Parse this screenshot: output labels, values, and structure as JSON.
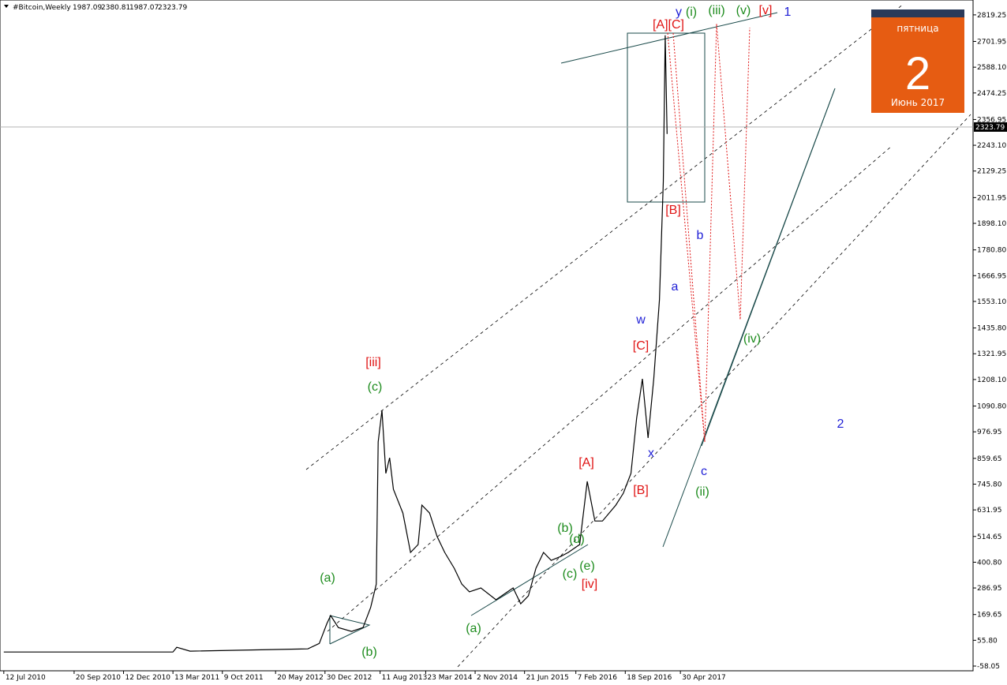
{
  "chart_data": {
    "type": "line",
    "title": "#Bitcoin,Weekly",
    "last_bar": {
      "open": 1987.09,
      "high": 2380.81,
      "low": 1987.07,
      "close": 2323.79
    },
    "x": [
      2,
      91,
      93,
      100,
      162,
      168,
      172,
      174,
      178,
      185,
      191,
      195,
      198,
      199,
      201,
      203,
      205,
      207,
      212,
      216,
      220,
      222,
      226,
      230,
      234,
      239,
      243,
      247,
      253,
      261,
      270,
      274,
      278,
      282,
      286,
      290,
      295,
      299,
      305,
      309,
      313,
      317,
      324,
      328,
      332,
      335,
      338,
      341,
      344,
      347,
      349,
      350,
      351
    ],
    "series": [
      {
        "color": "#000000",
        "values": [
          4,
          4,
          25,
          8,
          18,
          42,
          130,
          165,
          112,
          95,
          112,
          200,
          304,
          932,
          1072,
          793,
          862,
          723,
          618,
          444,
          479,
          653,
          618,
          514,
          444,
          374,
          304,
          270,
          287,
          235,
          287,
          217,
          252,
          374,
          444,
          409,
          426,
          444,
          479,
          758,
          583,
          583,
          653,
          706,
          793,
          1037,
          1211,
          950,
          1211,
          1560,
          2083,
          2729,
          2293
        ]
      }
    ],
    "xlim": [
      0,
      512
    ],
    "xticks": [
      {
        "value": 2,
        "label": "12 Jul 2010"
      },
      {
        "value": 39,
        "label": "20 Sep 2010"
      },
      {
        "value": 65,
        "label": "12 Dec 2010"
      },
      {
        "value": 91,
        "label": "13 Mar 2011"
      },
      {
        "value": 117,
        "label": "9 Oct 2011"
      },
      {
        "value": 145,
        "label": "20 May 2012"
      },
      {
        "value": 171,
        "label": "30 Dec 2012"
      },
      {
        "value": 200,
        "label": "11 Aug 2013"
      },
      {
        "value": 224,
        "label": "23 Mar 2014"
      },
      {
        "value": 250,
        "label": "2 Nov 2014"
      },
      {
        "value": 276,
        "label": "21 Jun 2015"
      },
      {
        "value": 303,
        "label": "7 Feb 2016"
      },
      {
        "value": 329,
        "label": "18 Sep 2016"
      },
      {
        "value": 358,
        "label": "30 Apr 2017"
      }
    ],
    "ylim": [
      -79,
      2885
    ],
    "yticks": [
      2819.25,
      2701.95,
      {
        "value": 2588.1,
        "label": "2588.10"
      },
      2474.25,
      2356.95,
      {
        "value": 2243.1,
        "label": "2243.10"
      },
      2129.25,
      2011.95,
      {
        "value": 1898.1,
        "label": "1898.10"
      },
      {
        "value": 1780.8,
        "label": "1780.80"
      },
      1666.95,
      {
        "value": 1553.1,
        "label": "1553.10"
      },
      {
        "value": 1435.8,
        "label": "1435.80"
      },
      1321.95,
      {
        "value": 1208.1,
        "label": "1208.10"
      },
      {
        "value": 1090.8,
        "label": "1090.80"
      },
      976.95,
      859.65,
      {
        "value": 745.8,
        "label": "745.80"
      },
      631.95,
      514.65,
      {
        "value": 400.8,
        "label": "400.80"
      },
      286.95,
      169.65,
      {
        "value": 55.8,
        "label": "55.80"
      },
      -58.05
    ],
    "annotations": [
      {
        "text": "y",
        "color": "#1f1fd6"
      },
      {
        "text": "(i)",
        "color": "#1e8c1e"
      },
      {
        "text": "(iii)",
        "color": "#1e8c1e"
      },
      {
        "text": "(v)",
        "color": "#1e8c1e"
      },
      {
        "text": "[v]",
        "color": "#e01515"
      },
      {
        "text": "1",
        "color": "#1f1fd6"
      },
      {
        "text": "[A][C]",
        "color": "#e01515"
      },
      {
        "text": "[B]",
        "color": "#e01515"
      },
      {
        "text": "b",
        "color": "#1f1fd6"
      },
      {
        "text": "a",
        "color": "#1f1fd6"
      },
      {
        "text": "w",
        "color": "#1f1fd6"
      },
      {
        "text": "[C]",
        "color": "#e01515"
      },
      {
        "text": "(iv)",
        "color": "#1e8c1e"
      },
      {
        "text": "[iii]",
        "color": "#e01515"
      },
      {
        "text": "(c)",
        "color": "#1e8c1e"
      },
      {
        "text": "2",
        "color": "#1f1fd6"
      },
      {
        "text": "x",
        "color": "#1f1fd6"
      },
      {
        "text": "[A]",
        "color": "#e01515"
      },
      {
        "text": "c",
        "color": "#1f1fd6"
      },
      {
        "text": "[B]",
        "color": "#e01515"
      },
      {
        "text": "(ii)",
        "color": "#1e8c1e"
      },
      {
        "text": "(b)",
        "color": "#1e8c1e"
      },
      {
        "text": "(d)",
        "color": "#1e8c1e"
      },
      {
        "text": "(c)",
        "color": "#1e8c1e"
      },
      {
        "text": "(e)",
        "color": "#1e8c1e"
      },
      {
        "text": "[iv]",
        "color": "#e01515"
      },
      {
        "text": "(a)",
        "color": "#1e8c1e"
      },
      {
        "text": "(b)",
        "color": "#1e8c1e"
      },
      {
        "text": "(a)",
        "color": "#1e8c1e"
      }
    ]
  },
  "calendar": {
    "weekday": "пятница",
    "day": "2",
    "month": "Июнь 2017"
  }
}
